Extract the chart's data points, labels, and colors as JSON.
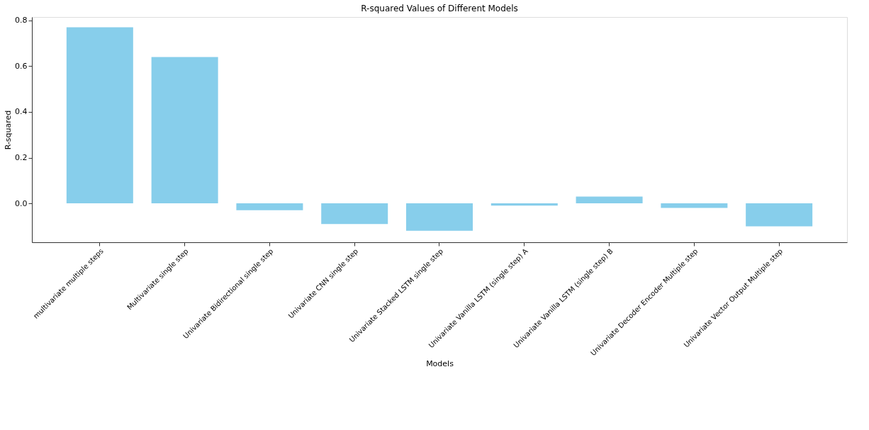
{
  "chart_data": {
    "type": "bar",
    "title": "R-squared Values of Different Models",
    "xlabel": "Models",
    "ylabel": "R-squared",
    "categories": [
      "multivariate multiple steps",
      "Multivariate single step",
      "Univariate Bidirectional single step",
      "Univariate CNN single step",
      "Univariate Stacked LSTM single step",
      "Univariate Vanilla LSTM (single step) A",
      "Univariate Vanilla LSTM (single step) B",
      "Univariate Decoder Encoder Multiple step",
      "Univariate Vector Output Multiple step"
    ],
    "values": [
      0.77,
      0.64,
      -0.03,
      -0.09,
      -0.12,
      -0.01,
      0.03,
      -0.02,
      -0.1
    ],
    "color": "#87ceeb",
    "ylim": [
      -0.17,
      0.815
    ],
    "yticks": [
      {
        "value": 0.0,
        "label": "0.0"
      },
      {
        "value": 0.2,
        "label": "0.2"
      },
      {
        "value": 0.4,
        "label": "0.4"
      },
      {
        "value": 0.6,
        "label": "0.6"
      },
      {
        "value": 0.8,
        "label": "0.8"
      }
    ],
    "grid": false
  }
}
